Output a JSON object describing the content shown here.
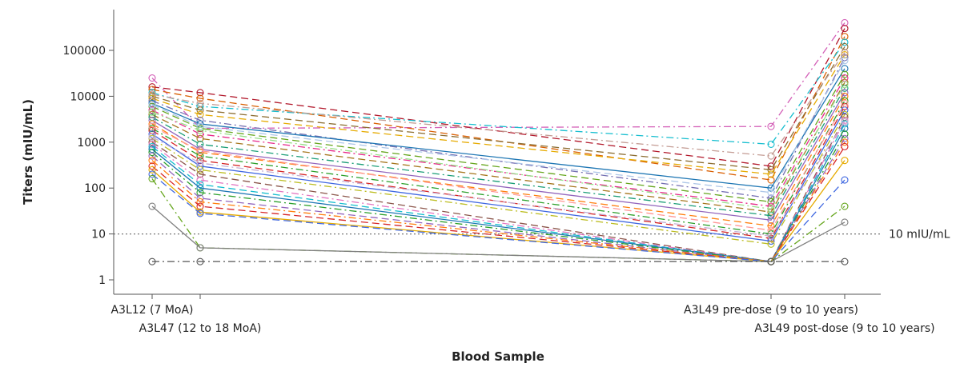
{
  "chart_data": {
    "type": "line",
    "title": "",
    "xlabel": "Blood Sample",
    "ylabel": "Titers (mIU/mL)",
    "yscale": "log",
    "ylim": [
      0.5,
      600000
    ],
    "yticks": [
      1,
      10,
      100,
      1000,
      10000,
      100000
    ],
    "ytick_labels": [
      "1",
      "10",
      "100",
      "1000",
      "10000",
      "100000"
    ],
    "categories": [
      "A3L12 (7 MoA)",
      "A3L47 (12 to 18 MoA)",
      "A3L49 pre-dose (9 to 10 years)",
      "A3L49 post-dose (9 to 10 years)"
    ],
    "category_x": [
      0,
      0.8,
      13,
      14
    ],
    "reference_line": {
      "value": 10,
      "label": "10 mIU/mL",
      "style": "dotted"
    },
    "legend": "none",
    "grid": false,
    "marker": "open-circle",
    "series": [
      {
        "values": [
          25000,
          2000,
          2200,
          400000
        ],
        "color": "#d35fb7",
        "dash": "dashdot"
      },
      {
        "values": [
          16000,
          12000,
          300,
          300000
        ],
        "color": "#b2182b",
        "dash": "dashed"
      },
      {
        "values": [
          14000,
          9000,
          150,
          200000
        ],
        "color": "#d95f02",
        "dash": "dashed"
      },
      {
        "values": [
          12000,
          6000,
          900,
          150000
        ],
        "color": "#17becf",
        "dash": "dashdot"
      },
      {
        "values": [
          10000,
          5000,
          250,
          120000
        ],
        "color": "#8c6d31",
        "dash": "dashed"
      },
      {
        "values": [
          9000,
          4000,
          200,
          80000
        ],
        "color": "#e6ab02",
        "dash": "dashed"
      },
      {
        "values": [
          8000,
          3000,
          60,
          70000
        ],
        "color": "#7570b3",
        "dash": "dashdot"
      },
      {
        "values": [
          7000,
          2500,
          100,
          40000
        ],
        "color": "#1f77b4",
        "dash": "solid"
      },
      {
        "values": [
          6000,
          2000,
          50,
          30000
        ],
        "color": "#66a61e",
        "dash": "dashed"
      },
      {
        "values": [
          5000,
          1500,
          40,
          25000
        ],
        "color": "#e7298a",
        "dash": "dashdot"
      },
      {
        "values": [
          4000,
          1200,
          30,
          20000
        ],
        "color": "#a6761d",
        "dash": "dashed"
      },
      {
        "values": [
          3500,
          900,
          25,
          15000
        ],
        "color": "#1b9e77",
        "dash": "dashdot"
      },
      {
        "values": [
          3000,
          700,
          20,
          12000
        ],
        "color": "#9467bd",
        "dash": "solid"
      },
      {
        "values": [
          2500,
          600,
          15,
          10000
        ],
        "color": "#ff7f0e",
        "dash": "dashed"
      },
      {
        "values": [
          2000,
          500,
          10,
          8000
        ],
        "color": "#2ca02c",
        "dash": "dashdot"
      },
      {
        "values": [
          1800,
          400,
          8,
          6000
        ],
        "color": "#d62728",
        "dash": "dashed"
      },
      {
        "values": [
          1500,
          300,
          7,
          5000
        ],
        "color": "#4169e1",
        "dash": "solid"
      },
      {
        "values": [
          1200,
          250,
          6,
          4000
        ],
        "color": "#bcbd22",
        "dash": "dashdot"
      },
      {
        "values": [
          1000,
          200,
          2.5,
          3500
        ],
        "color": "#8c564b",
        "dash": "dashed"
      },
      {
        "values": [
          900,
          150,
          2.5,
          3000
        ],
        "color": "#e377c2",
        "dash": "dashdot"
      },
      {
        "values": [
          800,
          120,
          2.5,
          2500
        ],
        "color": "#17becf",
        "dash": "dashed"
      },
      {
        "values": [
          700,
          100,
          2.5,
          2000
        ],
        "color": "#1f77b4",
        "dash": "solid"
      },
      {
        "values": [
          600,
          80,
          2.5,
          1500
        ],
        "color": "#2ca02c",
        "dash": "dashdot"
      },
      {
        "values": [
          500,
          60,
          2.5,
          1200
        ],
        "color": "#9467bd",
        "dash": "dashed"
      },
      {
        "values": [
          400,
          50,
          2.5,
          1000
        ],
        "color": "#ff7f0e",
        "dash": "dashdot"
      },
      {
        "values": [
          300,
          40,
          2.5,
          800
        ],
        "color": "#d62728",
        "dash": "dashed"
      },
      {
        "values": [
          250,
          30,
          2.5,
          400
        ],
        "color": "#e6ab02",
        "dash": "solid"
      },
      {
        "values": [
          200,
          28,
          2.5,
          150
        ],
        "color": "#4169e1",
        "dash": "dashed"
      },
      {
        "values": [
          160,
          5,
          2.5,
          40
        ],
        "color": "#66a61e",
        "dash": "dashdot"
      },
      {
        "values": [
          40,
          5,
          2.5,
          18
        ],
        "color": "#7f7f7f",
        "dash": "solid"
      },
      {
        "values": [
          2.5,
          2.5,
          2.5,
          2.5
        ],
        "color": "#555555",
        "dash": "dashdot"
      },
      {
        "values": [
          11000,
          7000,
          500,
          90000
        ],
        "color": "#c49c94",
        "dash": "dashdot"
      },
      {
        "values": [
          6500,
          2200,
          80,
          60000
        ],
        "color": "#aec7e8",
        "dash": "dashed"
      },
      {
        "values": [
          4500,
          1800,
          35,
          18000
        ],
        "color": "#98df8a",
        "dash": "dashdot"
      },
      {
        "values": [
          2200,
          650,
          12,
          7000
        ],
        "color": "#ff9896",
        "dash": "dashed"
      },
      {
        "values": [
          1300,
          350,
          9,
          2800
        ],
        "color": "#c5b0d5",
        "dash": "dashdot"
      }
    ]
  }
}
